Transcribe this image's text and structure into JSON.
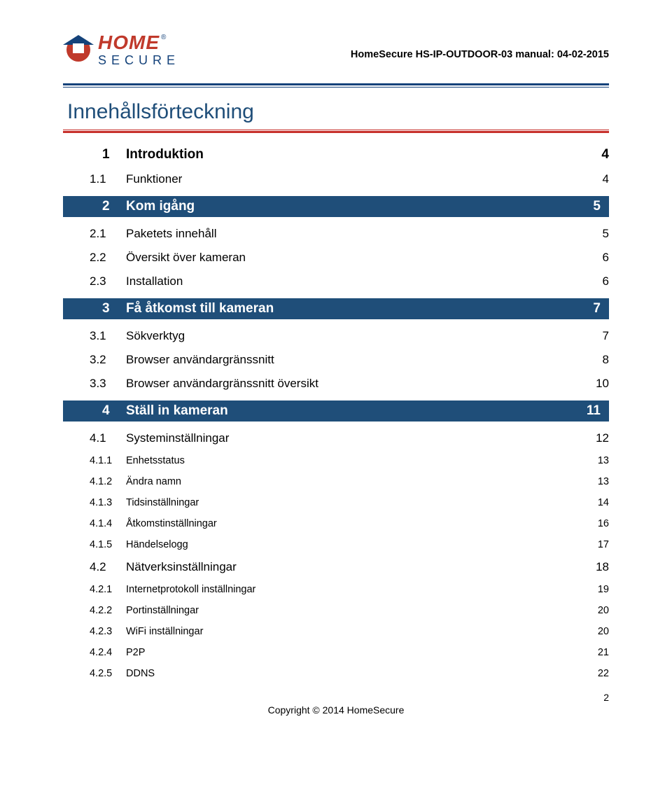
{
  "header": {
    "logo_home": "HOME",
    "logo_secure": "SECURE",
    "reg_mark": "®",
    "manual_title": "HomeSecure HS-IP-OUTDOOR-03 manual: 04-02-2015"
  },
  "toc_title": "Innehållsförteckning",
  "toc": [
    {
      "level": 1,
      "band": false,
      "num": "1",
      "label": "Introduktion",
      "page": "4"
    },
    {
      "level": 2,
      "num": "1.1",
      "label": "Funktioner",
      "page": "4"
    },
    {
      "level": 1,
      "band": true,
      "num": "2",
      "label": "Kom igång",
      "page": "5"
    },
    {
      "level": 2,
      "num": "2.1",
      "label": "Paketets innehåll",
      "page": "5"
    },
    {
      "level": 2,
      "num": "2.2",
      "label": "Översikt över kameran",
      "page": "6"
    },
    {
      "level": 2,
      "num": "2.3",
      "label": "Installation",
      "page": "6"
    },
    {
      "level": 1,
      "band": true,
      "num": "3",
      "label": "Få åtkomst till kameran",
      "page": "7"
    },
    {
      "level": 2,
      "num": "3.1",
      "label": "Sökverktyg",
      "page": "7"
    },
    {
      "level": 2,
      "num": "3.2",
      "label": "Browser användargränssnitt",
      "page": "8"
    },
    {
      "level": 2,
      "num": "3.3",
      "label": "Browser användargränssnitt översikt",
      "page": "10"
    },
    {
      "level": 1,
      "band": true,
      "num": "4",
      "label": "Ställ in kameran",
      "page": "11"
    },
    {
      "level": 2,
      "num": "4.1",
      "label": "Systeminställningar",
      "page": "12"
    },
    {
      "level": 3,
      "num": "4.1.1",
      "label": "Enhetsstatus",
      "page": "13"
    },
    {
      "level": 3,
      "num": "4.1.2",
      "label": "Ändra namn",
      "page": "13"
    },
    {
      "level": 3,
      "num": "4.1.3",
      "label": "Tidsinställningar",
      "page": "14"
    },
    {
      "level": 3,
      "num": "4.1.4",
      "label": "Åtkomstinställningar",
      "page": "16"
    },
    {
      "level": 3,
      "num": "4.1.5",
      "label": "Händelselogg",
      "page": "17"
    },
    {
      "level": 2,
      "num": "4.2",
      "label": "Nätverksinställningar",
      "page": "18"
    },
    {
      "level": 3,
      "num": "4.2.1",
      "label": "Internetprotokoll inställningar",
      "page": "19"
    },
    {
      "level": 3,
      "num": "4.2.2",
      "label": "Portinställningar",
      "page": "20"
    },
    {
      "level": 3,
      "num": "4.2.3",
      "label": "WiFi inställningar",
      "page": "20"
    },
    {
      "level": 3,
      "num": "4.2.4",
      "label": "P2P",
      "page": "21"
    },
    {
      "level": 3,
      "num": "4.2.5",
      "label": "DDNS",
      "page": "22"
    }
  ],
  "footer": {
    "copyright": "Copyright © 2014 HomeSecure",
    "page_number": "2"
  },
  "colors": {
    "brand_blue": "#1f4e79",
    "brand_red": "#c7302b",
    "logo_red": "#c0392b",
    "logo_blue": "#14427a",
    "text": "#000000",
    "bg": "#ffffff"
  }
}
